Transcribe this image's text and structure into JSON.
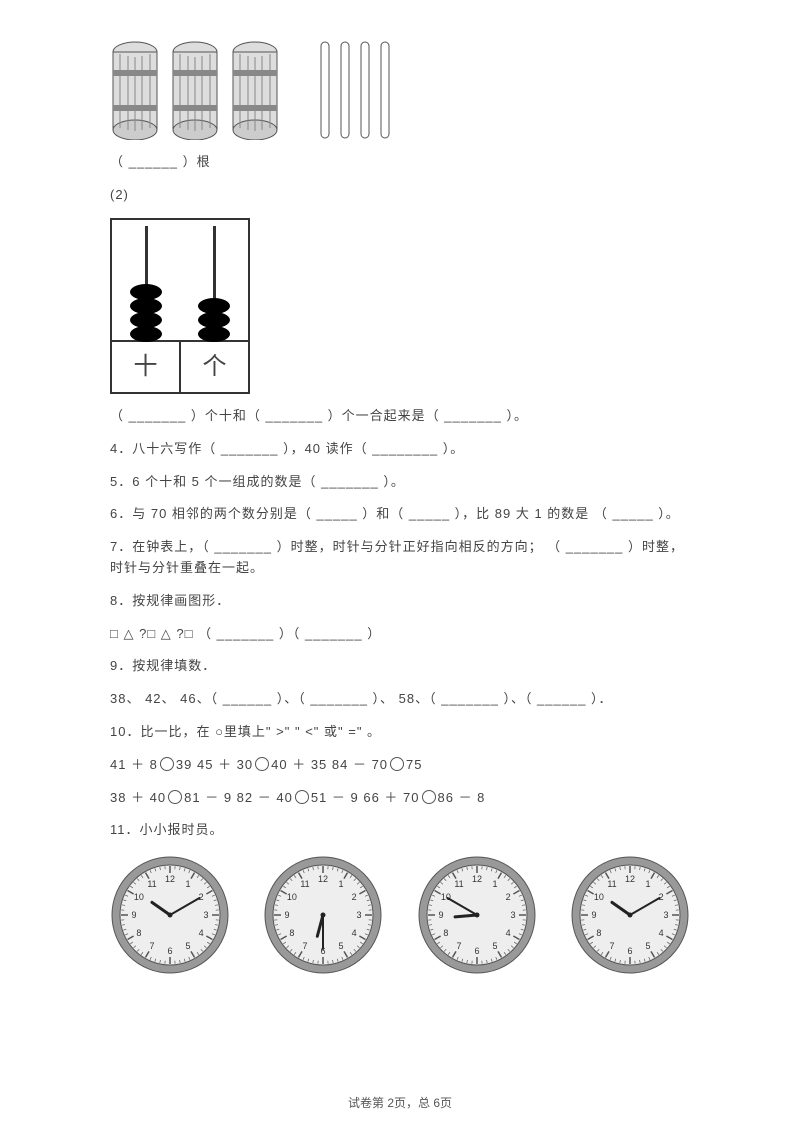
{
  "q3_1_label": "（ ______ ）根",
  "q3_2_label": "(2)",
  "q3_2_text": "（ _______ ）个十和（  _______ ）个一合起来是（   _______ ）。",
  "q4": "4．八十六写作（   _______ ），40 读作（  ________ ）。",
  "q5": "5．6 个十和  5 个一组成的数是（   _______ ）。",
  "q6": "6．与 70 相邻的两个数分别是（    _____ ）和（  _____ ），比  89 大  1 的数是   （  _____ ）。",
  "q7": "7．在钟表上，（  _______ ）时整，时针与分针正好指向相反的方向；     （  _______ ）时整，时针与分针重叠在一起。",
  "q8_title": "8．按规律画图形．",
  "q8_seq": "□ △  ?□ △  ?□  （  _______  ）（ _______ ）",
  "q9_title": "9．按规律填数．",
  "q9_seq": "38、 42、 46、（  ______ ）、（ _______ ）、  58、（  _______ ）、（  ______ ）．",
  "q10_title": "10．比一比，在  ○里填上\"  >\" \"   <\" 或\"  =\" 。",
  "q10_row1_a": "41 ＋ 8",
  "q10_row1_b": "39   45    ＋ 30",
  "q10_row1_c": "40 ＋ 35   84    － 70",
  "q10_row1_d": "75",
  "q10_row2_a": "38 ＋ 40",
  "q10_row2_b": "81 － 9  82    － 40",
  "q10_row2_c": "51 － 9  66   ＋ 70",
  "q10_row2_d": "86 － 8",
  "q11": "11．小小报时员。",
  "abacus_tens": "十",
  "abacus_ones": "个",
  "footer": "试卷第  2页，总  6页",
  "clock_times": [
    {
      "h": 10,
      "m": 10
    },
    {
      "h": 6,
      "m": 30
    },
    {
      "h": 8,
      "m": 50
    },
    {
      "h": 10,
      "m": 10
    }
  ],
  "colors": {
    "text": "#444444",
    "line": "#555555",
    "clock_face": "#eeeeee",
    "clock_ring": "#999999"
  }
}
